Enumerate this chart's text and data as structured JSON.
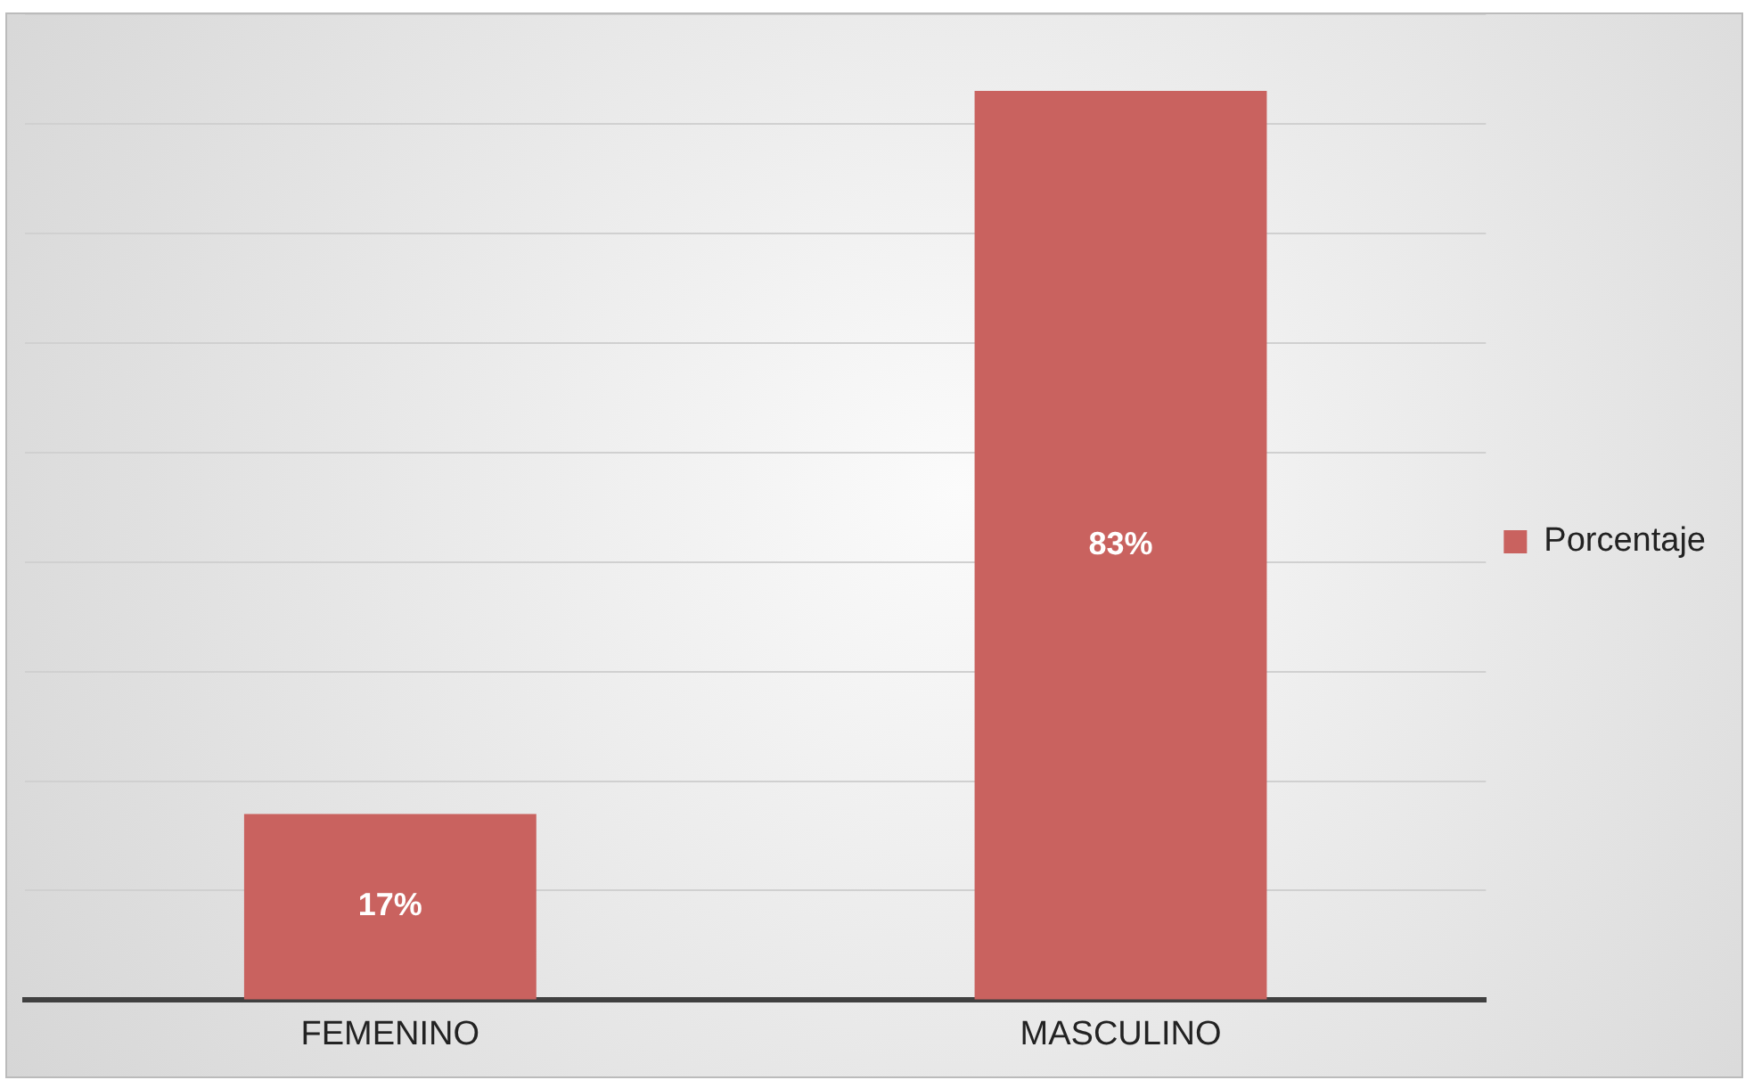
{
  "chart_data": {
    "type": "bar",
    "categories": [
      "FEMENINO",
      "MASCULINO"
    ],
    "series": [
      {
        "name": "Porcentaje",
        "color": "#c9625f",
        "values": [
          17,
          83
        ],
        "value_labels": [
          "17%",
          "83%"
        ]
      }
    ],
    "grid": "y",
    "legend": "right",
    "tick_labels": "x"
  }
}
